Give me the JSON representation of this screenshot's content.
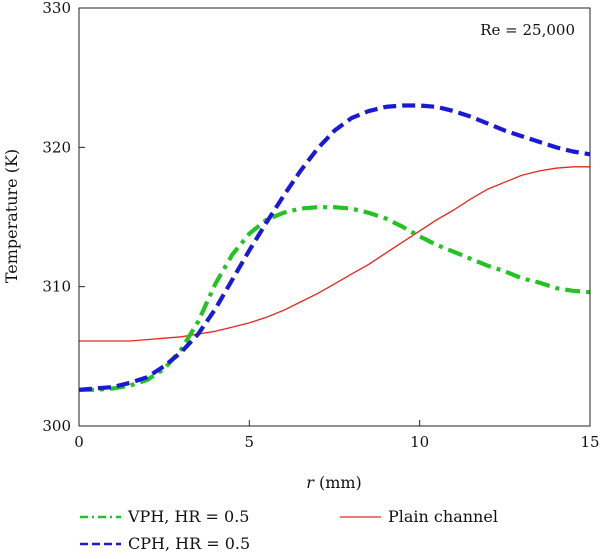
{
  "chart_data": {
    "type": "line",
    "annotation": "Re = 25,000",
    "xlabel_var": "r",
    "xlabel_unit": " (mm)",
    "ylabel": "Temperature (K)",
    "xlim": [
      0,
      15
    ],
    "ylim": [
      300,
      330
    ],
    "xticks": [
      0,
      5,
      10,
      15
    ],
    "yticks": [
      300,
      310,
      320,
      330
    ],
    "legend_position": "bottom",
    "series": [
      {
        "name": "VPH, HR = 0.5",
        "color": "#22c322",
        "style": "dash-dot",
        "x": [
          0,
          0.5,
          1.0,
          1.5,
          2.0,
          2.5,
          3.0,
          3.5,
          4.0,
          4.5,
          5.0,
          5.5,
          6.0,
          6.5,
          7.0,
          7.5,
          8.0,
          8.5,
          9.0,
          9.5,
          10.0,
          10.5,
          11.0,
          11.5,
          12.0,
          12.5,
          13.0,
          13.5,
          14.0,
          14.5,
          15.0
        ],
        "values": [
          302.6,
          302.6,
          302.7,
          302.9,
          303.3,
          304.1,
          305.5,
          307.5,
          310.2,
          312.3,
          313.8,
          314.8,
          315.3,
          315.6,
          315.7,
          315.7,
          315.6,
          315.3,
          314.9,
          314.3,
          313.6,
          313.0,
          312.5,
          312.0,
          311.5,
          311.1,
          310.6,
          310.3,
          309.9,
          309.7,
          309.6
        ]
      },
      {
        "name": "CPH, HR = 0.5",
        "color": "#1a1ad6",
        "style": "dashed",
        "x": [
          0,
          0.5,
          1.0,
          1.5,
          2.0,
          2.5,
          3.0,
          3.5,
          4.0,
          4.5,
          5.0,
          5.5,
          6.0,
          6.5,
          7.0,
          7.5,
          8.0,
          8.5,
          9.0,
          9.5,
          10.0,
          10.5,
          11.0,
          11.5,
          12.0,
          12.5,
          13.0,
          13.5,
          14.0,
          14.5,
          15.0
        ],
        "values": [
          302.6,
          302.7,
          302.8,
          303.1,
          303.5,
          304.3,
          305.3,
          306.6,
          308.4,
          310.5,
          312.6,
          314.6,
          316.5,
          318.3,
          319.9,
          321.2,
          322.1,
          322.6,
          322.9,
          323.0,
          323.0,
          322.9,
          322.6,
          322.2,
          321.7,
          321.2,
          320.8,
          320.4,
          320.0,
          319.7,
          319.5
        ]
      },
      {
        "name": "Plain channel",
        "color": "#e8261e",
        "style": "solid",
        "x": [
          0,
          0.5,
          1.0,
          1.5,
          2.0,
          2.5,
          3.0,
          3.5,
          4.0,
          4.5,
          5.0,
          5.5,
          6.0,
          6.5,
          7.0,
          7.5,
          8.0,
          8.5,
          9.0,
          9.5,
          10.0,
          10.5,
          11.0,
          11.5,
          12.0,
          12.5,
          13.0,
          13.5,
          14.0,
          14.5,
          15.0
        ],
        "values": [
          306.1,
          306.1,
          306.1,
          306.1,
          306.2,
          306.3,
          306.4,
          306.6,
          306.8,
          307.1,
          307.4,
          307.8,
          308.3,
          308.9,
          309.5,
          310.2,
          310.9,
          311.6,
          312.4,
          313.2,
          314.0,
          314.8,
          315.5,
          316.3,
          317.0,
          317.5,
          318.0,
          318.3,
          318.5,
          318.6,
          318.6
        ]
      }
    ]
  }
}
